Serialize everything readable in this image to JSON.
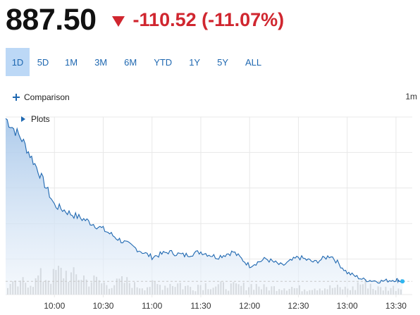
{
  "quote": {
    "price": "887.50",
    "change": "-110.52 (-11.07%)",
    "change_color": "#d0262f",
    "direction_icon": "down-triangle-icon"
  },
  "range_tabs": [
    {
      "label": "1D",
      "active": true
    },
    {
      "label": "5D",
      "active": false
    },
    {
      "label": "1M",
      "active": false
    },
    {
      "label": "3M",
      "active": false
    },
    {
      "label": "6M",
      "active": false
    },
    {
      "label": "YTD",
      "active": false
    },
    {
      "label": "1Y",
      "active": false
    },
    {
      "label": "5Y",
      "active": false
    },
    {
      "label": "ALL",
      "active": false
    }
  ],
  "toolbar": {
    "comparison_label": "Comparison",
    "interval_label": "1m",
    "plots_label": "Plots"
  },
  "colors": {
    "line": "#1f68b1",
    "area_top": "#a9c8ea",
    "volume": "#b5b5b5",
    "active_tab": "#bcd8f6",
    "end_marker": "#2fb6f0"
  },
  "chart_data": {
    "type": "area",
    "x_ticks": [
      "10:00",
      "10:30",
      "11:00",
      "11:30",
      "12:00",
      "12:30",
      "13:00",
      "13:30"
    ],
    "series": [
      {
        "x": [
          "09:30",
          "09:40",
          "09:50",
          "10:00",
          "10:10",
          "10:20",
          "10:30",
          "10:40",
          "10:50",
          "11:00",
          "11:10",
          "11:20",
          "11:30",
          "11:40",
          "11:50",
          "12:00",
          "12:10",
          "12:20",
          "12:30",
          "12:40",
          "12:50",
          "13:00",
          "13:10",
          "13:20",
          "13:30",
          "13:34"
        ],
        "values": [
          1.0,
          0.88,
          0.7,
          0.5,
          0.45,
          0.41,
          0.36,
          0.3,
          0.25,
          0.2,
          0.23,
          0.21,
          0.23,
          0.2,
          0.23,
          0.15,
          0.19,
          0.15,
          0.2,
          0.17,
          0.21,
          0.11,
          0.07,
          0.06,
          0.07,
          0.06
        ]
      }
    ],
    "volume_values": [
      0.3,
      0.42,
      0.56,
      0.7,
      0.58,
      0.45,
      0.35,
      0.4,
      0.28,
      0.3,
      0.35,
      0.25,
      0.32,
      0.28,
      0.26,
      0.3,
      0.22,
      0.25,
      0.2,
      0.24,
      0.22,
      0.2,
      0.35,
      0.2,
      0.22,
      0.25
    ],
    "grid": true
  }
}
